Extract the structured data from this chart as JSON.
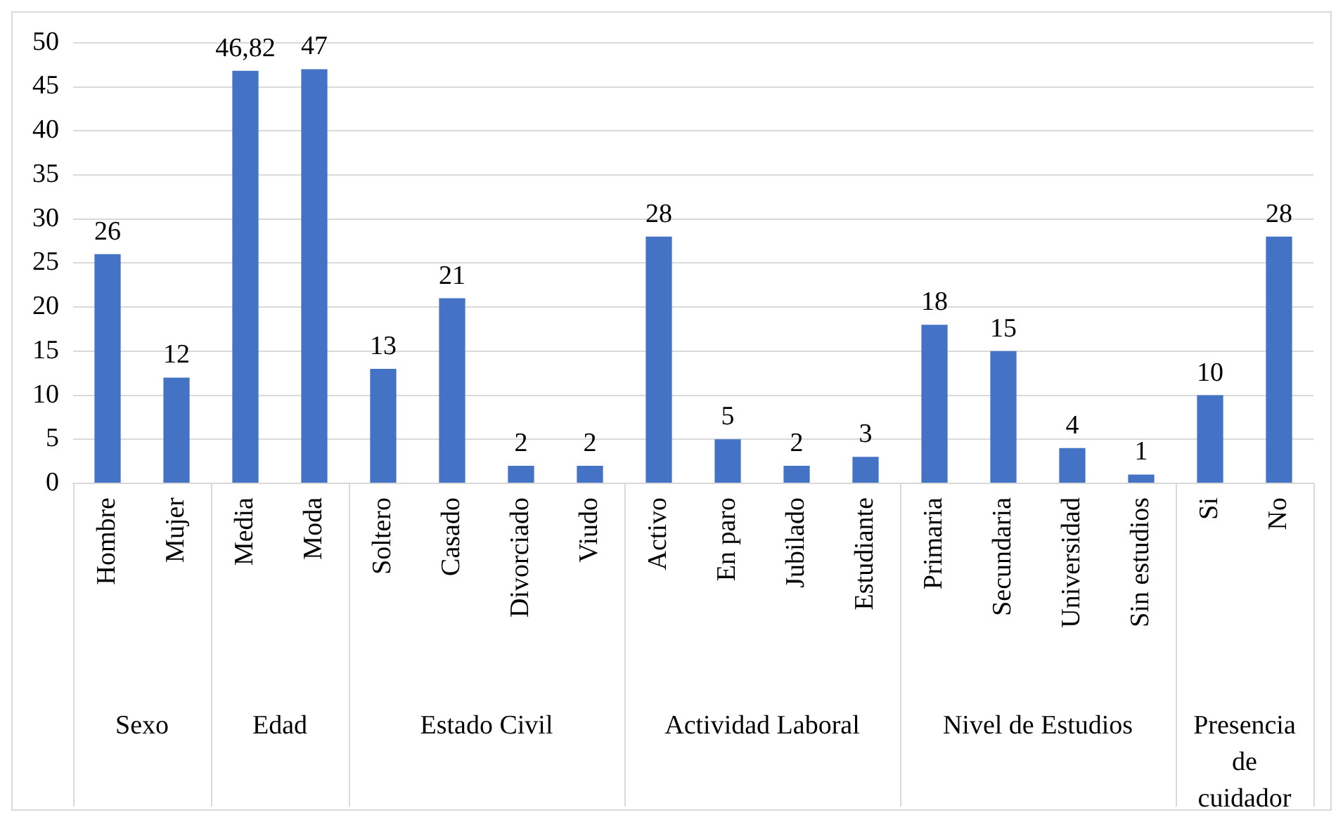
{
  "chart_data": {
    "type": "bar",
    "categories": [
      "Hombre",
      "Mujer",
      "Media",
      "Moda",
      "Soltero",
      "Casado",
      "Divorciado",
      "Viudo",
      "Activo",
      "En paro",
      "Jubilado",
      "Estudiante",
      "Primaria",
      "Secundaria",
      "Universidad",
      "Sin estudios",
      "Si",
      "No"
    ],
    "values": [
      26,
      12,
      46.82,
      47,
      13,
      21,
      2,
      2,
      28,
      5,
      2,
      3,
      18,
      15,
      4,
      1,
      10,
      28
    ],
    "value_labels": [
      "26",
      "12",
      "46,82",
      "47",
      "13",
      "21",
      "2",
      "2",
      "28",
      "5",
      "2",
      "3",
      "18",
      "15",
      "4",
      "1",
      "10",
      "28"
    ],
    "color": "#4472c4",
    "ylim": [
      0,
      50
    ],
    "yticks": [
      0,
      5,
      10,
      15,
      20,
      25,
      30,
      35,
      40,
      45,
      50
    ],
    "grid": "y",
    "annotations": [
      "Sexo",
      "Edad",
      "Estado Civil",
      "Actividad Laboral",
      "Nivel de Estudios",
      "Presencia de cuidador"
    ]
  }
}
